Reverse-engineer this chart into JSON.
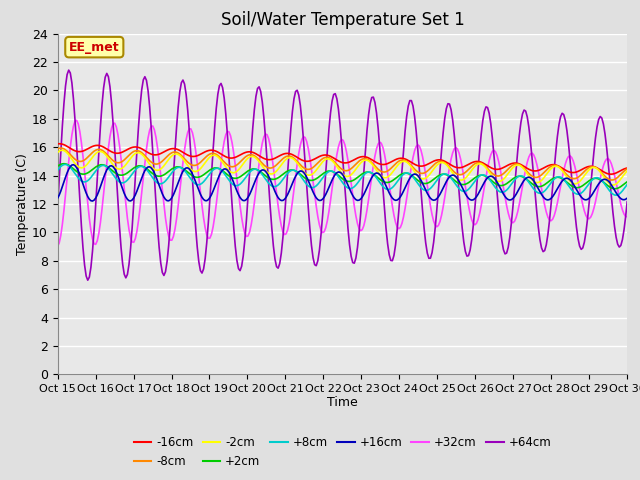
{
  "title": "Soil/Water Temperature Set 1",
  "xlabel": "Time",
  "ylabel": "Temperature (C)",
  "ylim": [
    0,
    24
  ],
  "yticks": [
    0,
    2,
    4,
    6,
    8,
    10,
    12,
    14,
    16,
    18,
    20,
    22,
    24
  ],
  "xtick_labels": [
    "Oct 15",
    "Oct 16",
    "Oct 17",
    "Oct 18",
    "Oct 19",
    "Oct 20",
    "Oct 21",
    "Oct 22",
    "Oct 23",
    "Oct 24",
    "Oct 25",
    "Oct 26",
    "Oct 27",
    "Oct 28",
    "Oct 29",
    "Oct 30"
  ],
  "background_color": "#e0e0e0",
  "plot_bg_color": "#e8e8e8",
  "grid_color": "#ffffff",
  "series": [
    {
      "label": "-16cm",
      "color": "#ff0000"
    },
    {
      "label": "-8cm",
      "color": "#ff8800"
    },
    {
      "label": "-2cm",
      "color": "#ffff00"
    },
    {
      "label": "+2cm",
      "color": "#00cc00"
    },
    {
      "label": "+8cm",
      "color": "#00cccc"
    },
    {
      "label": "+16cm",
      "color": "#0000bb"
    },
    {
      "label": "+32cm",
      "color": "#ff44ff"
    },
    {
      "label": "+64cm",
      "color": "#9900bb"
    }
  ],
  "annotation_text": "EE_met",
  "annotation_color": "#cc0000",
  "annotation_bg": "#ffffaa",
  "annotation_border": "#aa8800"
}
